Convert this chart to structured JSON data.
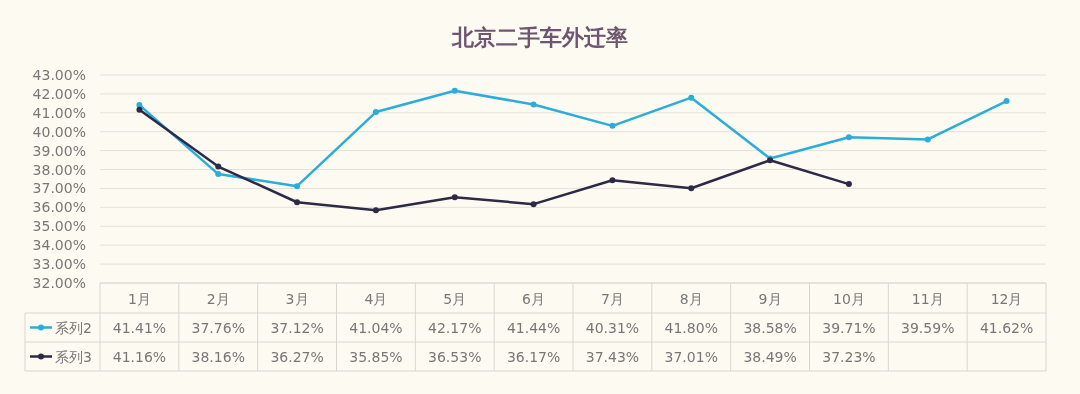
{
  "chart_data": {
    "type": "line",
    "title": "北京二手车外迁率",
    "categories": [
      "1月",
      "2月",
      "3月",
      "4月",
      "5月",
      "6月",
      "7月",
      "8月",
      "9月",
      "10月",
      "11月",
      "12月"
    ],
    "series": [
      {
        "name": "系列2",
        "color": "#2aaddb",
        "values": [
          41.41,
          37.76,
          37.12,
          41.04,
          42.17,
          41.44,
          40.31,
          41.8,
          38.58,
          39.71,
          39.59,
          41.62
        ],
        "value_labels": [
          "41.41%",
          "37.76%",
          "37.12%",
          "41.04%",
          "42.17%",
          "41.44%",
          "40.31%",
          "41.80%",
          "38.58%",
          "39.71%",
          "39.59%",
          "41.62%"
        ]
      },
      {
        "name": "系列3",
        "color": "#2c2a46",
        "values": [
          41.16,
          38.16,
          36.27,
          35.85,
          36.53,
          36.17,
          37.43,
          37.01,
          38.49,
          37.23,
          null,
          null
        ],
        "value_labels": [
          "41.16%",
          "38.16%",
          "36.27%",
          "35.85%",
          "36.53%",
          "36.17%",
          "37.43%",
          "37.01%",
          "38.49%",
          "37.23%",
          null,
          null
        ]
      }
    ],
    "ylim": [
      32,
      43
    ],
    "yticks": [
      {
        "value": 32,
        "label": "32.00%"
      },
      {
        "value": 33,
        "label": "33.00%"
      },
      {
        "value": 34,
        "label": "34.00%"
      },
      {
        "value": 35,
        "label": "35.00%"
      },
      {
        "value": 36,
        "label": "36.00%"
      },
      {
        "value": 37,
        "label": "37.00%"
      },
      {
        "value": 38,
        "label": "38.00%"
      },
      {
        "value": 39,
        "label": "39.00%"
      },
      {
        "value": 40,
        "label": "40.00%"
      },
      {
        "value": 41,
        "label": "41.00%"
      },
      {
        "value": 42,
        "label": "42.00%"
      },
      {
        "value": 43,
        "label": "43.00%"
      }
    ],
    "grid": "y",
    "legend": "bottom",
    "marker": "circle"
  }
}
